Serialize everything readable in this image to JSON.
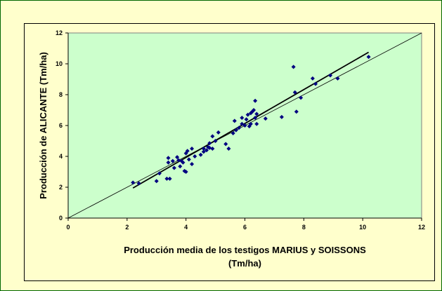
{
  "colors": {
    "page_background": "#ffffcc",
    "plot_background": "#ccffcc",
    "point_color": "#000080",
    "line_color": "#000000"
  },
  "chart_data": {
    "type": "scatter",
    "xlabel": [
      "Producción media de los testigos MARIUS y SOISSONS",
      "(Tm/ha)"
    ],
    "ylabel": "Producción de ALICANTE (Tm/ha)",
    "xlim": [
      0,
      12
    ],
    "ylim": [
      0,
      12
    ],
    "xticks": [
      0,
      2,
      4,
      6,
      8,
      10,
      12
    ],
    "yticks": [
      0,
      2,
      4,
      6,
      8,
      10,
      12
    ],
    "xtick_labels": [
      "0",
      "2",
      "4",
      "6",
      "8",
      "10",
      "12"
    ],
    "ytick_labels": [
      "0",
      "2",
      "4",
      "6",
      "8",
      "10",
      "12"
    ],
    "grid": false,
    "points": [
      [
        2.2,
        2.3
      ],
      [
        2.4,
        2.25
      ],
      [
        3.0,
        2.4
      ],
      [
        3.1,
        2.9
      ],
      [
        3.35,
        2.55
      ],
      [
        3.45,
        2.55
      ],
      [
        3.4,
        3.9
      ],
      [
        3.4,
        3.6
      ],
      [
        3.55,
        3.7
      ],
      [
        3.6,
        3.25
      ],
      [
        3.7,
        3.95
      ],
      [
        3.8,
        3.35
      ],
      [
        3.75,
        3.75
      ],
      [
        3.85,
        3.7
      ],
      [
        3.9,
        3.6
      ],
      [
        3.95,
        3.05
      ],
      [
        4.0,
        3.0
      ],
      [
        4.0,
        4.2
      ],
      [
        4.05,
        4.35
      ],
      [
        4.1,
        3.8
      ],
      [
        4.2,
        3.5
      ],
      [
        4.2,
        4.5
      ],
      [
        4.3,
        4.0
      ],
      [
        4.5,
        4.1
      ],
      [
        4.6,
        4.3
      ],
      [
        4.6,
        4.5
      ],
      [
        4.7,
        4.4
      ],
      [
        4.75,
        4.6
      ],
      [
        4.8,
        4.85
      ],
      [
        4.8,
        4.55
      ],
      [
        4.9,
        5.3
      ],
      [
        4.9,
        4.5
      ],
      [
        5.0,
        5.0
      ],
      [
        5.1,
        5.55
      ],
      [
        5.35,
        4.8
      ],
      [
        5.45,
        4.5
      ],
      [
        5.6,
        5.5
      ],
      [
        5.65,
        6.3
      ],
      [
        5.7,
        5.7
      ],
      [
        5.8,
        5.85
      ],
      [
        5.9,
        6.5
      ],
      [
        5.9,
        6.1
      ],
      [
        6.0,
        6.0
      ],
      [
        6.05,
        6.4
      ],
      [
        6.1,
        6.7
      ],
      [
        6.15,
        5.95
      ],
      [
        6.2,
        6.8
      ],
      [
        6.2,
        6.1
      ],
      [
        6.25,
        6.9
      ],
      [
        6.3,
        7.0
      ],
      [
        6.35,
        6.5
      ],
      [
        6.35,
        7.6
      ],
      [
        6.4,
        6.75
      ],
      [
        6.4,
        6.1
      ],
      [
        6.7,
        6.45
      ],
      [
        7.25,
        6.55
      ],
      [
        7.65,
        9.8
      ],
      [
        7.7,
        8.15
      ],
      [
        7.75,
        6.9
      ],
      [
        7.9,
        7.8
      ],
      [
        8.3,
        9.05
      ],
      [
        8.4,
        8.7
      ],
      [
        8.9,
        9.25
      ],
      [
        9.15,
        9.05
      ],
      [
        10.2,
        10.45
      ]
    ],
    "lines": [
      {
        "name": "",
        "x": [
          0,
          12
        ],
        "y": [
          0,
          12
        ],
        "width": 0.8
      },
      {
        "name": "",
        "x": [
          2.2,
          10.2
        ],
        "y": [
          1.95,
          10.75
        ],
        "width": 1.8
      }
    ]
  }
}
